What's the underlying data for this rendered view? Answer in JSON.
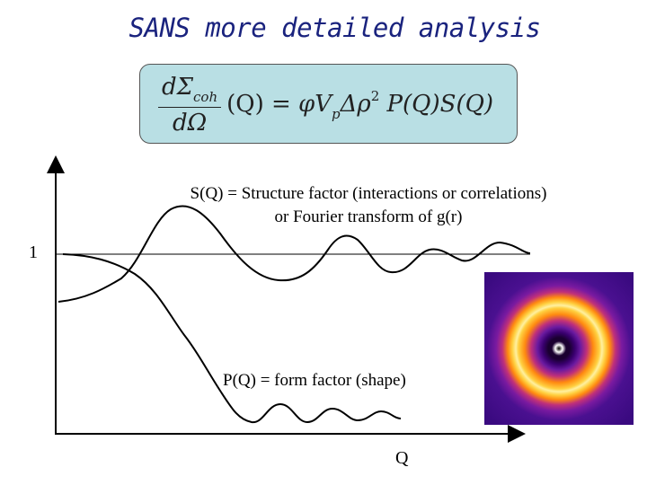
{
  "title": "SANS more detailed analysis",
  "equation": {
    "lhs_numerator": "dΣ",
    "lhs_subscript": "coh",
    "lhs_denominator": "dΩ",
    "arg": "(Q) = ",
    "phi": "φ",
    "V": "V",
    "V_sub": "p",
    "delta_rho": "Δρ",
    "rho_sup": "2",
    "tail": " P(Q)S(Q)"
  },
  "labels": {
    "structure_factor_line1": "S(Q) = Structure factor (interactions or correlations)",
    "structure_factor_line2": "or Fourier transform of g(r)",
    "form_factor": "P(Q) = form factor (shape)",
    "one": "1",
    "q": "Q"
  },
  "colors": {
    "title": "#1a237e",
    "equation_box": "#b9dfe4",
    "curves": "#000000"
  }
}
